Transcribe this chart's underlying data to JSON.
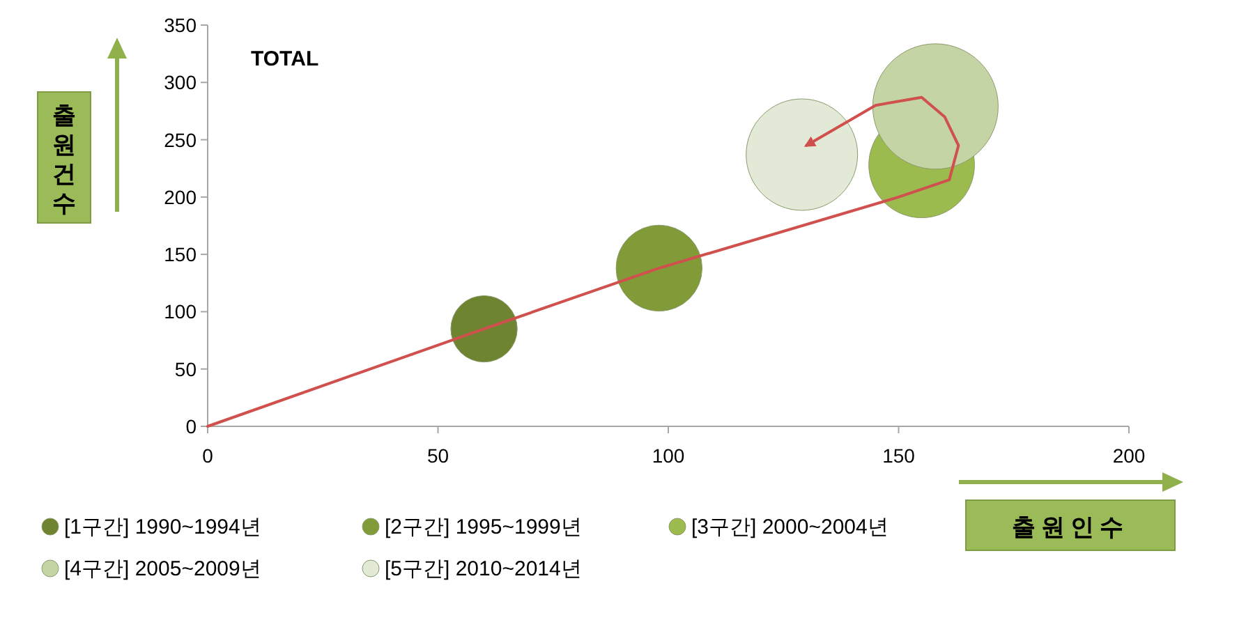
{
  "chart_data": {
    "type": "bubble",
    "title": "TOTAL",
    "xlabel": "출원인수",
    "ylabel": "출원건수",
    "xlim": [
      0,
      200
    ],
    "ylim": [
      0,
      350
    ],
    "xticks": [
      0,
      50,
      100,
      150,
      200
    ],
    "yticks": [
      0,
      50,
      100,
      150,
      200,
      250,
      300,
      350
    ],
    "legend": "bottom",
    "series": [
      {
        "type": "line",
        "color": "#d0504d",
        "marker": "none",
        "x": [
          0,
          60,
          98,
          150,
          161,
          163,
          160,
          155,
          145,
          130
        ],
        "values": [
          0,
          85,
          138,
          200,
          215,
          245,
          270,
          287,
          280,
          245
        ]
      },
      {
        "name": "[1구간] 1990~1994년",
        "color": "#6f8430",
        "x": [
          60
        ],
        "values": [
          85
        ],
        "sizes": [
          0.28
        ]
      },
      {
        "name": "[2구간] 1995~1999년",
        "color": "#809b38",
        "x": [
          98
        ],
        "values": [
          138
        ],
        "sizes": [
          0.47
        ]
      },
      {
        "name": "[3구간] 2000~2004년",
        "color": "#9cbb4e",
        "x": [
          155
        ],
        "values": [
          228
        ],
        "sizes": [
          0.71
        ]
      },
      {
        "name": "[4구간] 2005~2009년",
        "color": "#c4d4a4",
        "x": [
          158
        ],
        "values": [
          279
        ],
        "sizes": [
          1
        ]
      },
      {
        "name": "[5구간] 2010~2014년",
        "color": "#e2e9d6",
        "x": [
          129
        ],
        "values": [
          237
        ],
        "sizes": [
          0.79
        ]
      }
    ]
  }
}
